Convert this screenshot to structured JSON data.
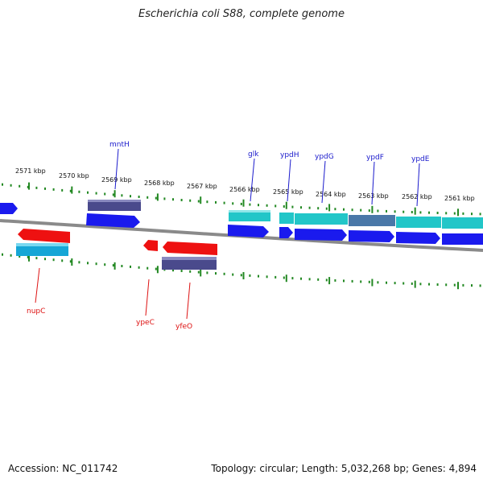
{
  "title": "Escherichia coli S88, complete genome",
  "footer": {
    "accession": "Accession: NC_011742",
    "summary": "Topology: circular; Length: 5,032,268 bp; Genes: 4,894"
  },
  "colors": {
    "forward_cds": "#1a1aee",
    "reverse_cds": "#ee1111",
    "forward_label": "#1a1acc",
    "reverse_label": "#dd1111",
    "teal_feature": "#22c6c8",
    "navy_feature": "#4a4a8c",
    "tick": "#228822",
    "backbone": "#8a8a8a"
  },
  "kbp_labels": [
    "2571 kbp",
    "2570 kbp",
    "2569 kbp",
    "2568 kbp",
    "2567 kbp",
    "2566 kbp",
    "2565 kbp",
    "2564 kbp",
    "2563 kbp",
    "2562 kbp",
    "2561 kbp"
  ],
  "forward_genes": [
    "mntH",
    "glk",
    "ypdH",
    "ypdG",
    "ypdF",
    "ypdE"
  ],
  "reverse_genes": [
    "nupC",
    "ypeC",
    "yfeO"
  ]
}
